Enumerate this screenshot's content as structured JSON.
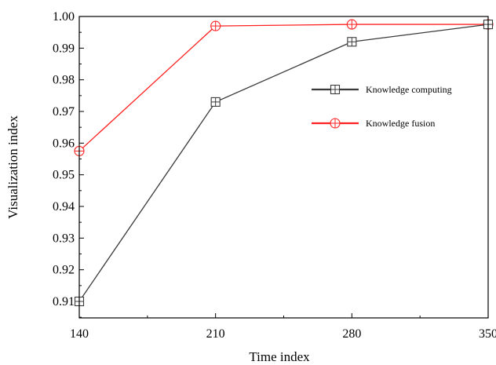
{
  "chart_data": {
    "type": "line",
    "x": [
      140,
      210,
      280,
      350
    ],
    "xlabel": "Time index",
    "ylabel": "Visualization index",
    "xlim": [
      140,
      350
    ],
    "ylim": [
      0.905,
      1.0
    ],
    "xticks": [
      "140",
      "210",
      "280",
      "350"
    ],
    "yticks": [
      "0.91",
      "0.92",
      "0.93",
      "0.94",
      "0.95",
      "0.96",
      "0.97",
      "0.98",
      "0.99",
      "1.00"
    ],
    "grid": false,
    "legend_position": "right",
    "series": [
      {
        "name": "Knowledge computing",
        "color": "#3a3a3a",
        "marker": "square-plus",
        "values": [
          0.91,
          0.973,
          0.992,
          0.9975
        ]
      },
      {
        "name": "Knowledge fusion",
        "color": "#ff2020",
        "marker": "circle-plus",
        "values": [
          0.9575,
          0.997,
          0.9975,
          0.9975
        ]
      }
    ]
  }
}
